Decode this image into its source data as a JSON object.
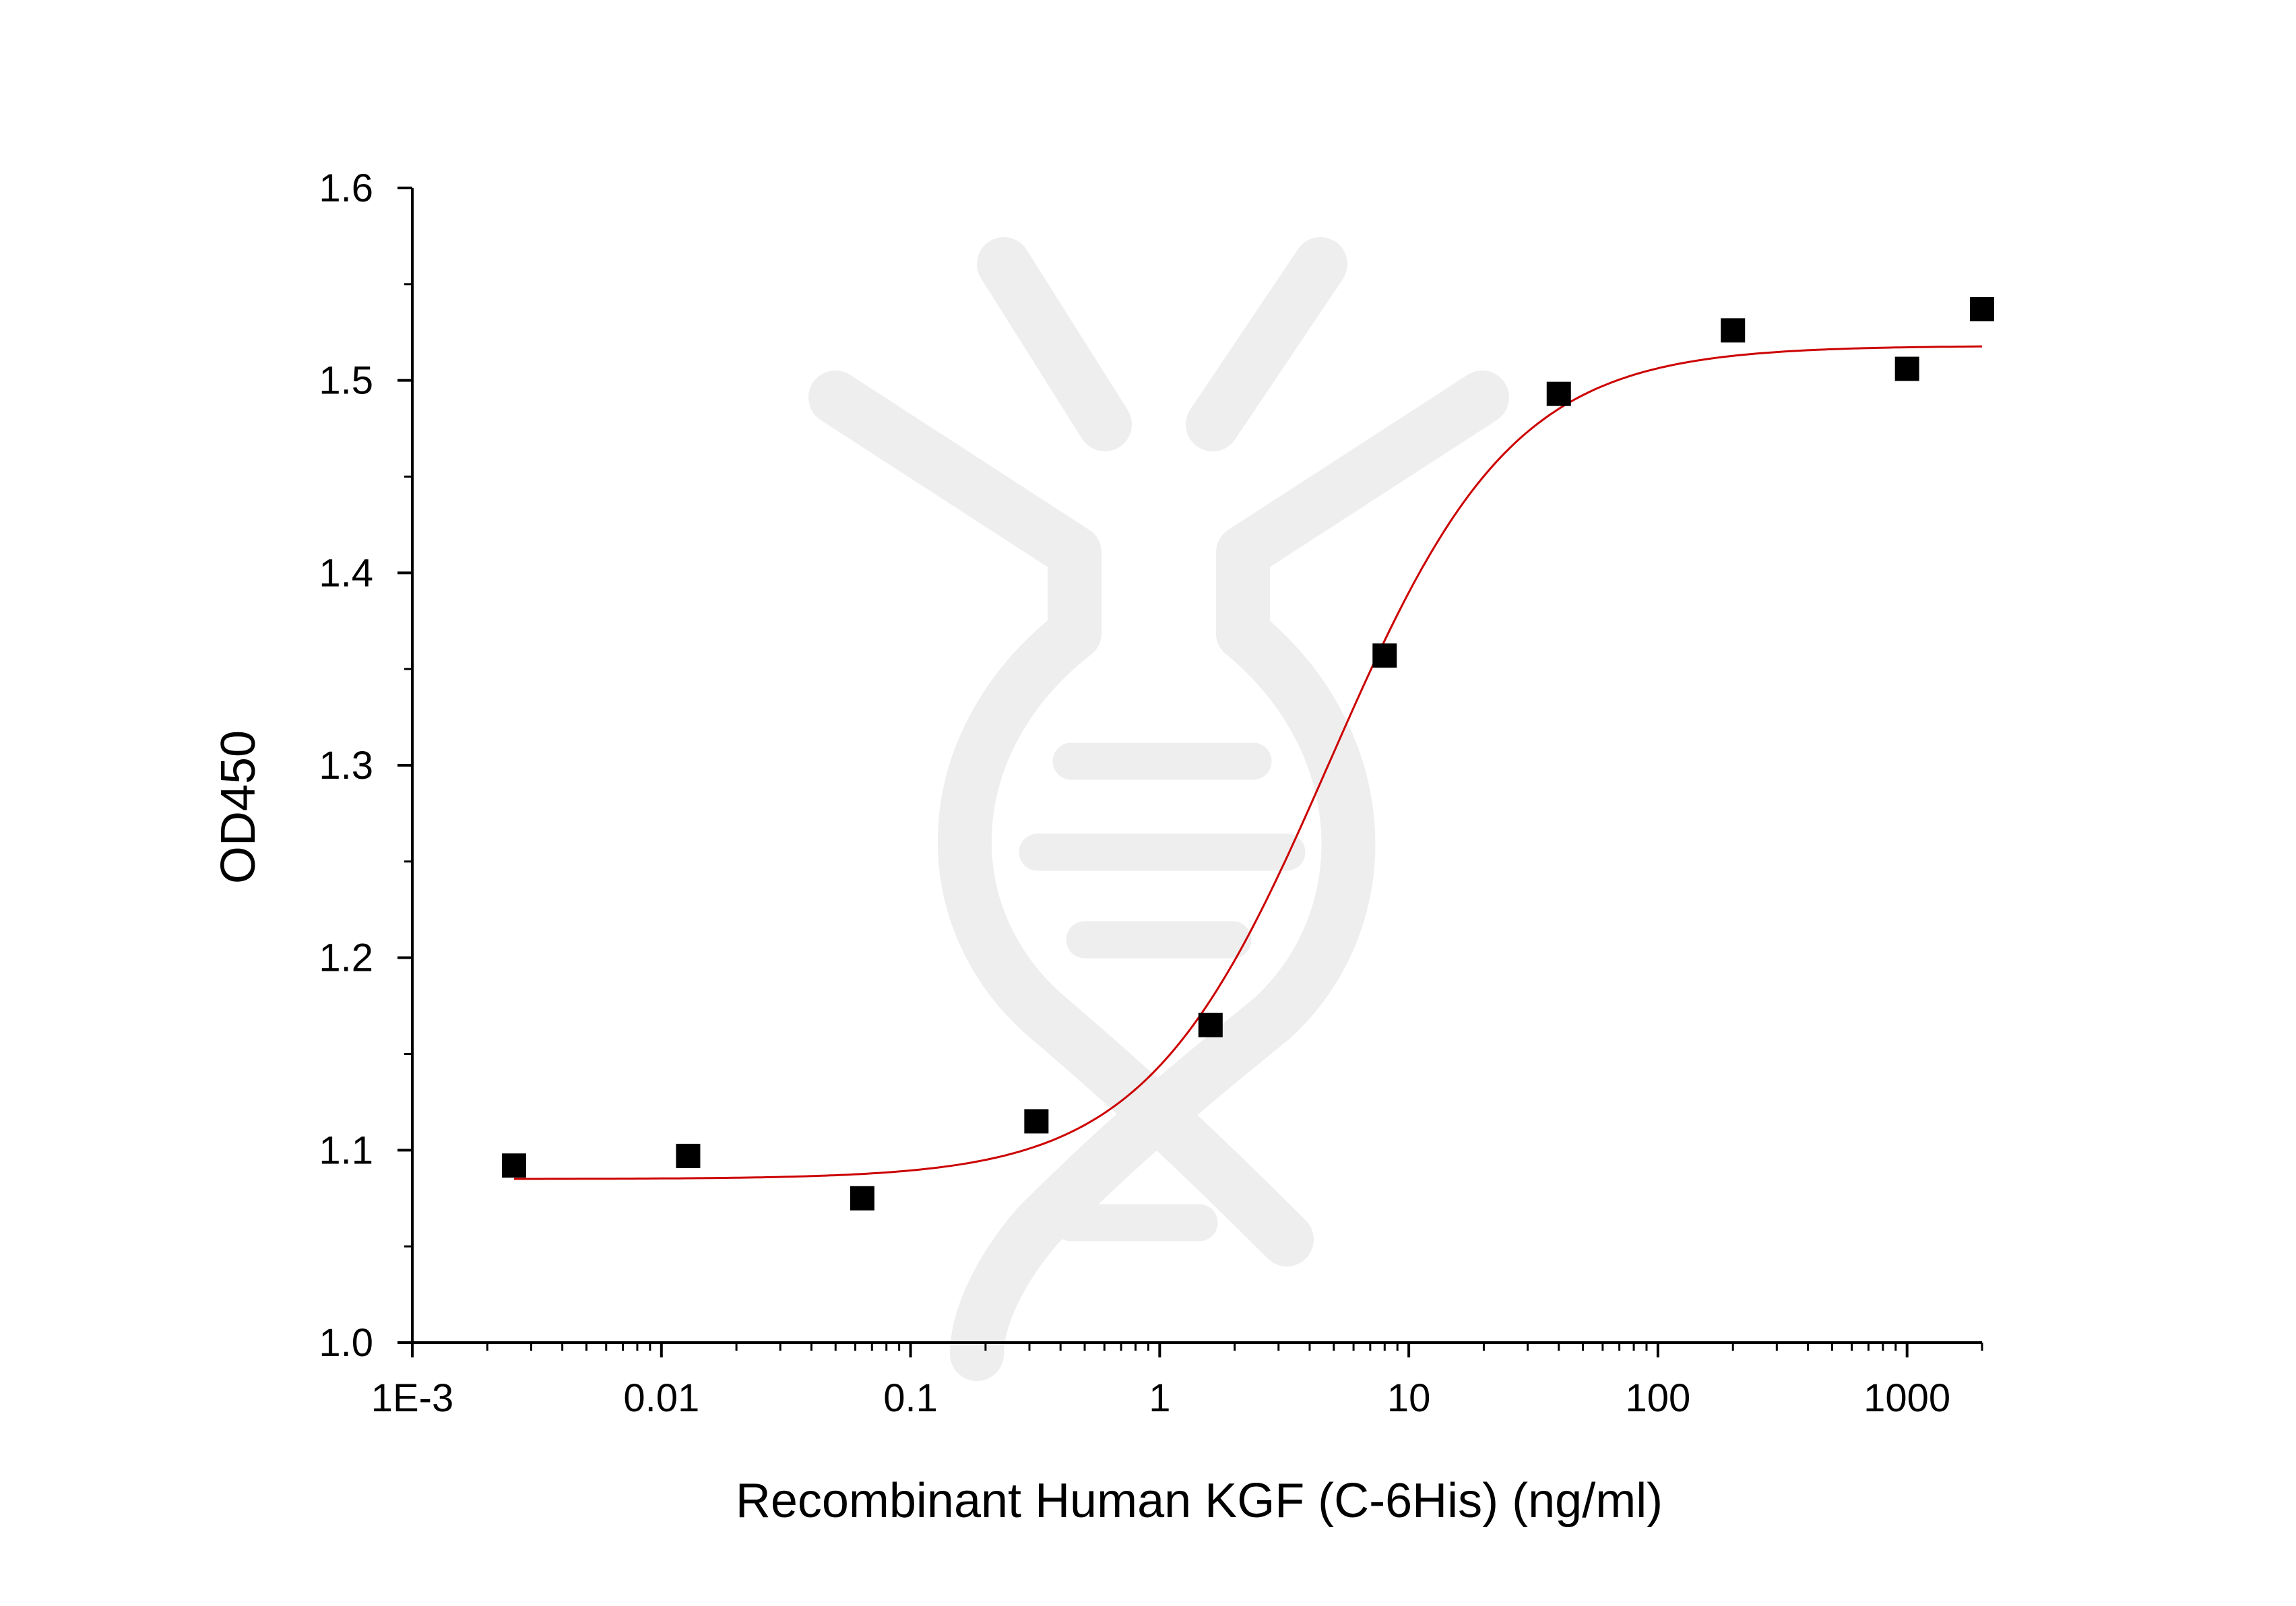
{
  "chart_data": {
    "type": "scatter",
    "title": "",
    "xlabel": "Recombinant Human KGF (C-6His) (ng/ml)",
    "ylabel": "OD450",
    "x_scale": "log",
    "xlim": [
      0.001,
      2000
    ],
    "ylim": [
      1.0,
      1.6
    ],
    "x_tick_values": [
      0.001,
      0.01,
      0.1,
      1,
      10,
      100,
      1000
    ],
    "x_tick_labels": [
      "1E-3",
      "0.01",
      "0.1",
      "1",
      "10",
      "100",
      "1000"
    ],
    "y_tick_values": [
      1.0,
      1.1,
      1.2,
      1.3,
      1.4,
      1.5,
      1.6
    ],
    "y_tick_labels": [
      "1.0",
      "1.1",
      "1.2",
      "1.3",
      "1.4",
      "1.5",
      "1.6"
    ],
    "grid": false,
    "legend": "none",
    "points": {
      "x": [
        0.00256,
        0.0128,
        0.064,
        0.32,
        1.6,
        8,
        40,
        200,
        1000,
        2000
      ],
      "y": [
        1.092,
        1.097,
        1.075,
        1.115,
        1.165,
        1.357,
        1.493,
        1.526,
        1.506,
        1.537
      ],
      "marker": "square",
      "color": "#000000"
    },
    "fit_curve": {
      "model": "4PL",
      "bottom": 1.085,
      "top": 1.518,
      "ec50": 4.8,
      "hill": 1.18,
      "x_range": [
        0.00256,
        2000
      ],
      "color": "#cc0000"
    },
    "watermark_color": "#eeeeee"
  }
}
